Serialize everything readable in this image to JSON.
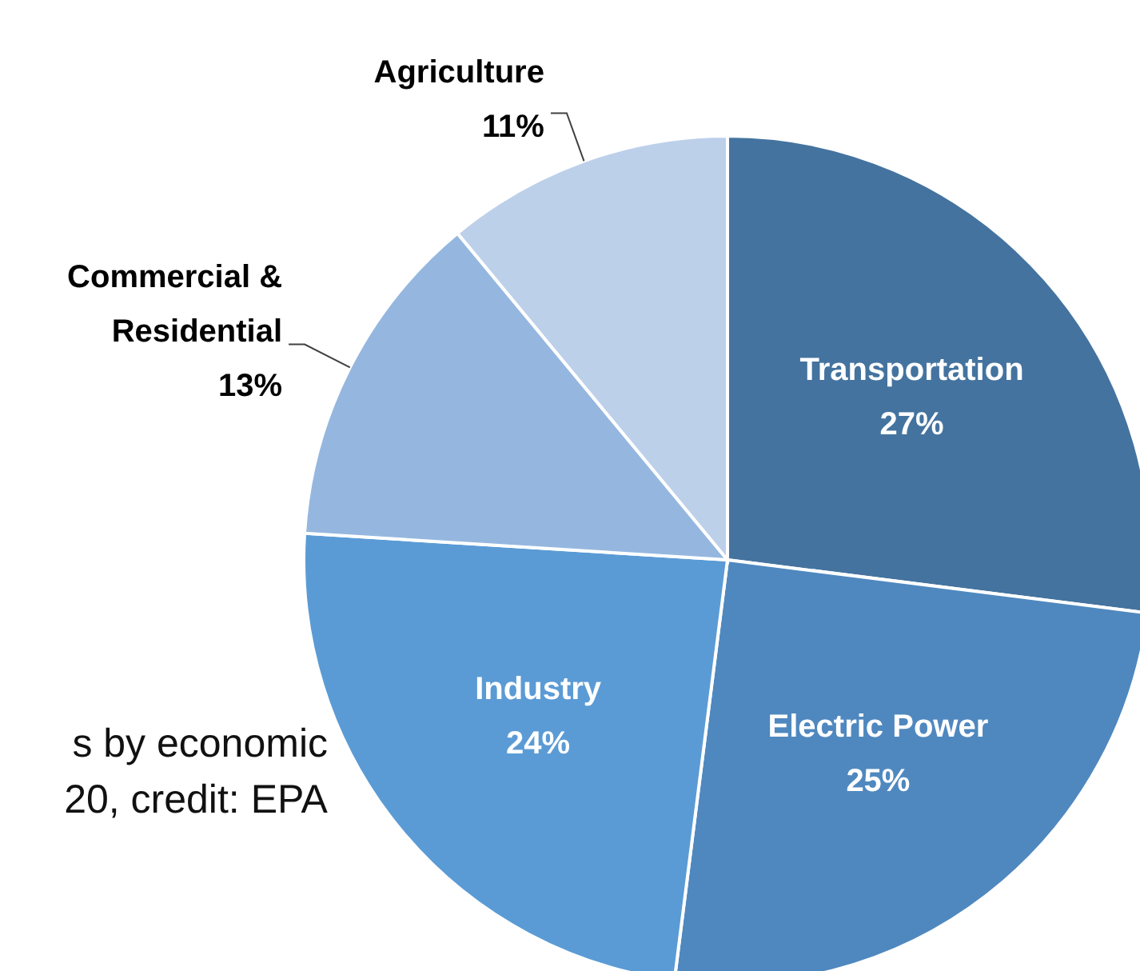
{
  "chart_data": {
    "type": "pie",
    "categories": [
      "Transportation",
      "Electric Power",
      "Industry",
      "Commercial & Residential",
      "Agriculture"
    ],
    "values": [
      27,
      25,
      24,
      13,
      11
    ],
    "value_labels": [
      "27%",
      "25%",
      "24%",
      "13%",
      "11%"
    ],
    "colors": [
      "#44739f",
      "#4f88bf",
      "#5b9bd5",
      "#95b7df",
      "#bdd0ea"
    ],
    "annotations": [
      "s by economic",
      "20, credit: EPA"
    ],
    "legend": false
  }
}
